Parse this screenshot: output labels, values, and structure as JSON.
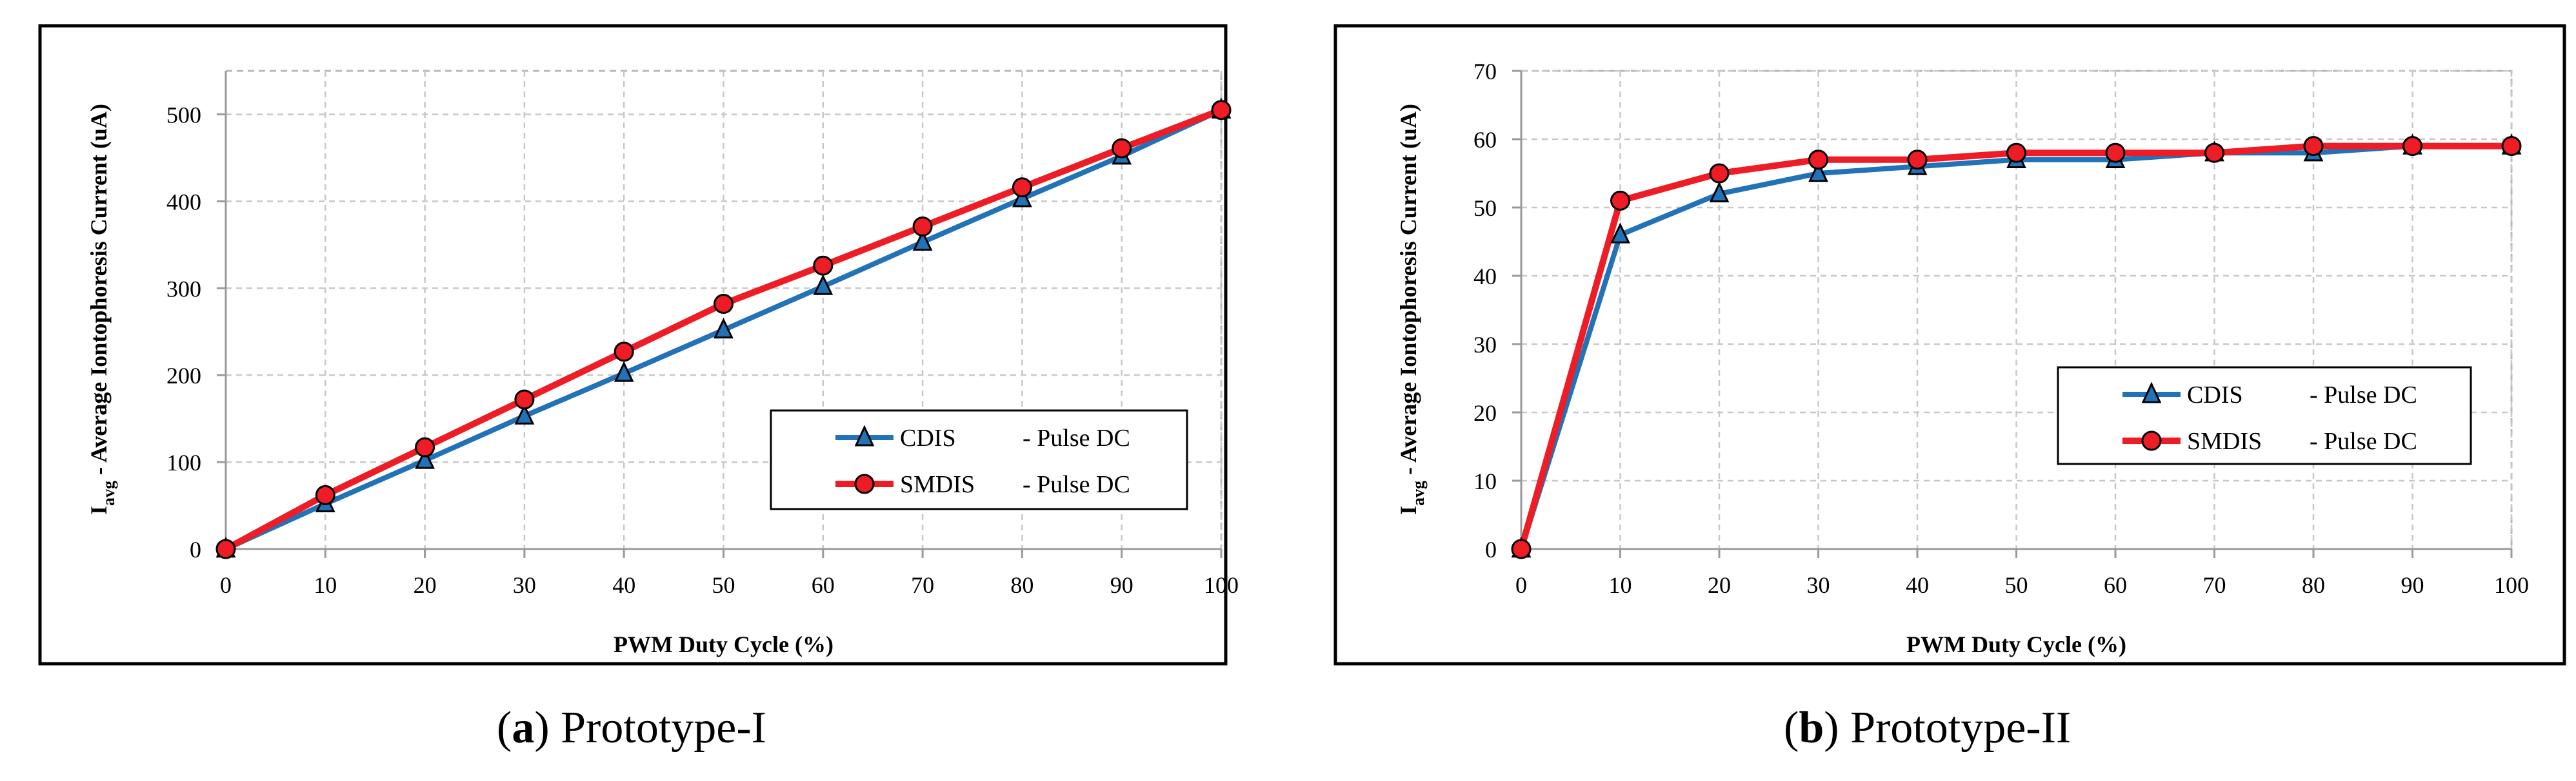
{
  "chart_data": [
    {
      "type": "line",
      "ylabel_main": "I",
      "ylabel_sub": "avg",
      "ylabel_rest": " - Average Iontophoresis Current (uA)",
      "xlabel": "PWM Duty Cycle (%)",
      "x": [
        0,
        10,
        20,
        30,
        40,
        50,
        60,
        70,
        80,
        90,
        100
      ],
      "xticks": [
        "0",
        "10",
        "20",
        "30",
        "40",
        "50",
        "60",
        "70",
        "80",
        "90",
        "100"
      ],
      "yticks": [
        "0",
        "100",
        "200",
        "300",
        "400",
        "500"
      ],
      "ytick_values": [
        0,
        100,
        200,
        300,
        400,
        500
      ],
      "ylim": [
        0,
        550
      ],
      "xlim": [
        0,
        100
      ],
      "grid": true,
      "legend_position": "center-right",
      "series": [
        {
          "name": "CDIS",
          "suffix": "- Pulse DC",
          "color": "#2272b8",
          "marker": "triangle",
          "values": [
            0,
            52,
            102,
            153,
            202,
            252,
            302,
            353,
            403,
            452,
            505
          ]
        },
        {
          "name": "SMDIS",
          "suffix": "- Pulse DC",
          "color": "#ee1c25",
          "marker": "circle",
          "values": [
            0,
            62,
            117,
            172,
            227,
            282,
            326,
            371,
            416,
            461,
            505
          ]
        }
      ],
      "caption_letter": "a",
      "caption_text": " Prototype-I"
    },
    {
      "type": "line",
      "ylabel_main": "I",
      "ylabel_sub": "avg",
      "ylabel_rest": " - Average Iontophoresis Current (uA)",
      "xlabel": "PWM Duty Cycle (%)",
      "x": [
        0,
        10,
        20,
        30,
        40,
        50,
        60,
        70,
        80,
        90,
        100
      ],
      "xticks": [
        "0",
        "10",
        "20",
        "30",
        "40",
        "50",
        "60",
        "70",
        "80",
        "90",
        "100"
      ],
      "yticks": [
        "0",
        "10",
        "20",
        "30",
        "40",
        "50",
        "60",
        "70"
      ],
      "ytick_values": [
        0,
        10,
        20,
        30,
        40,
        50,
        60,
        70
      ],
      "ylim": [
        0,
        70
      ],
      "xlim": [
        0,
        100
      ],
      "grid": true,
      "legend_position": "center-right",
      "series": [
        {
          "name": "CDIS",
          "suffix": "- Pulse DC",
          "color": "#2272b8",
          "marker": "triangle",
          "values": [
            0,
            46,
            52,
            55,
            56,
            57,
            57,
            58,
            58,
            59,
            59
          ]
        },
        {
          "name": "SMDIS",
          "suffix": "- Pulse DC",
          "color": "#ee1c25",
          "marker": "circle",
          "values": [
            0,
            51,
            55,
            57,
            57,
            58,
            58,
            58,
            59,
            59,
            59
          ]
        }
      ],
      "caption_letter": "b",
      "caption_text": " Prototype-II"
    }
  ]
}
